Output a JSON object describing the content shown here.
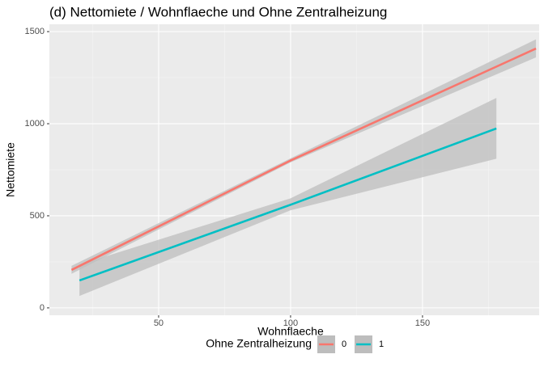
{
  "chart_data": {
    "type": "line",
    "title": "(d) Nettomiete / Wohnflaeche und Ohne Zentralheizung",
    "x_label": "Wohnflaeche",
    "y_label": "Nettomiete",
    "legend_title": "Ohne Zentralheizung",
    "legend_position": "bottom",
    "ribbon_color": "#bdbdbd",
    "xlim": [
      8.6,
      194.2
    ],
    "ylim": [
      -40,
      1540
    ],
    "xticks": [
      50,
      100,
      150
    ],
    "yticks": [
      0,
      500,
      1000,
      1500
    ],
    "grid": true,
    "series": [
      {
        "name": "0",
        "color": "#F8766D",
        "x": [
          17,
          100,
          193
        ],
        "values": [
          206,
          800,
          1408
        ],
        "lower": [
          185,
          790,
          1360
        ],
        "upper": [
          228,
          812,
          1458
        ]
      },
      {
        "name": "1",
        "color": "#00BFC4",
        "x": [
          20,
          100,
          178
        ],
        "values": [
          149,
          560,
          974
        ],
        "lower": [
          65,
          530,
          810
        ],
        "upper": [
          235,
          595,
          1140
        ]
      }
    ]
  }
}
